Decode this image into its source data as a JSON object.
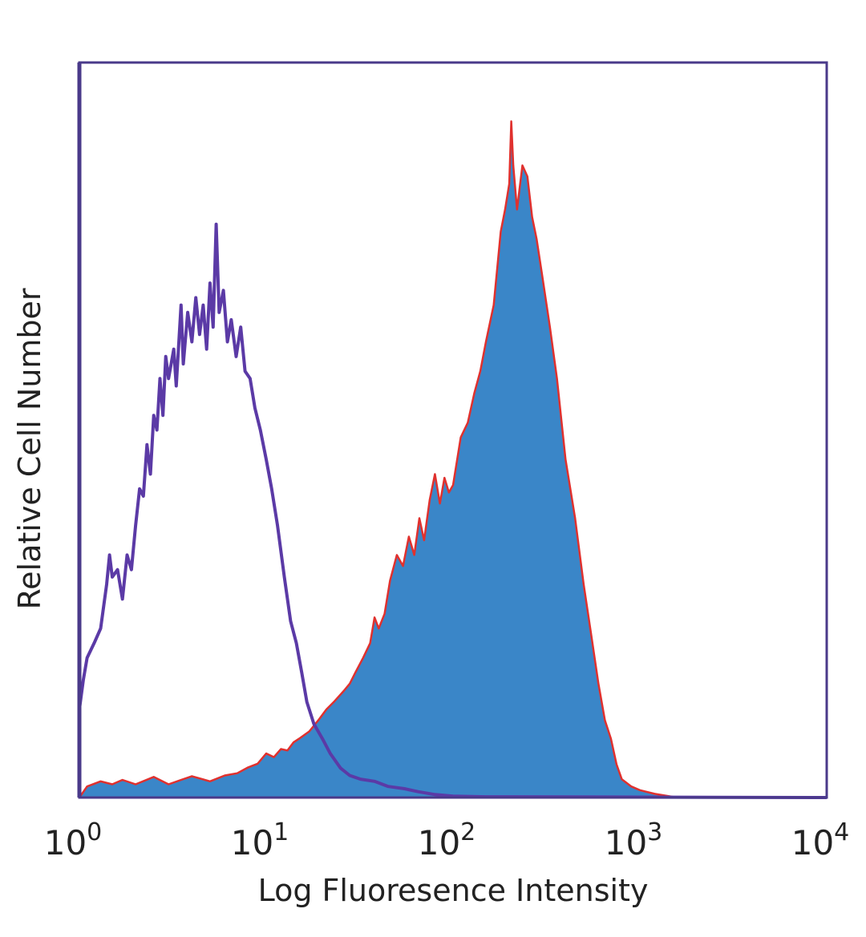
{
  "chart_data": {
    "type": "area",
    "title": "",
    "xlabel": "Log Fluoresence Intensity",
    "ylabel": "Relative Cell Number",
    "x_scale": "log",
    "xlim": [
      1,
      10000
    ],
    "ylim": [
      0,
      100
    ],
    "grid": false,
    "legend": "none",
    "x_ticks": [
      {
        "base": "10",
        "exp": "0"
      },
      {
        "base": "10",
        "exp": "1"
      },
      {
        "base": "10",
        "exp": "2"
      },
      {
        "base": "10",
        "exp": "3"
      },
      {
        "base": "10",
        "exp": "4"
      }
    ],
    "colors": {
      "control_line": "#5b3aa6",
      "stained_fill": "#3a86c8",
      "stained_edge": "#e0312e",
      "frame": "#4a3a8a"
    },
    "series": [
      {
        "style": "outline",
        "color": "#5b3aa6",
        "points": [
          [
            1.0,
            12
          ],
          [
            1.05,
            16
          ],
          [
            1.1,
            19
          ],
          [
            1.2,
            21
          ],
          [
            1.3,
            23
          ],
          [
            1.4,
            29
          ],
          [
            1.45,
            33
          ],
          [
            1.5,
            30
          ],
          [
            1.6,
            31
          ],
          [
            1.7,
            27
          ],
          [
            1.8,
            33
          ],
          [
            1.9,
            31
          ],
          [
            2.0,
            37
          ],
          [
            2.1,
            42
          ],
          [
            2.2,
            41
          ],
          [
            2.3,
            48
          ],
          [
            2.4,
            44
          ],
          [
            2.5,
            52
          ],
          [
            2.6,
            50
          ],
          [
            2.7,
            57
          ],
          [
            2.8,
            52
          ],
          [
            2.9,
            60
          ],
          [
            3.0,
            57
          ],
          [
            3.2,
            61
          ],
          [
            3.3,
            56
          ],
          [
            3.5,
            67
          ],
          [
            3.6,
            59
          ],
          [
            3.8,
            66
          ],
          [
            4.0,
            62
          ],
          [
            4.2,
            68
          ],
          [
            4.4,
            63
          ],
          [
            4.6,
            67
          ],
          [
            4.8,
            61
          ],
          [
            5.0,
            70
          ],
          [
            5.2,
            64
          ],
          [
            5.4,
            78
          ],
          [
            5.6,
            66
          ],
          [
            5.9,
            69
          ],
          [
            6.2,
            62
          ],
          [
            6.5,
            65
          ],
          [
            6.9,
            60
          ],
          [
            7.3,
            64
          ],
          [
            7.7,
            58
          ],
          [
            8.2,
            57
          ],
          [
            8.7,
            53
          ],
          [
            9.3,
            50
          ],
          [
            10.0,
            46
          ],
          [
            10.7,
            42
          ],
          [
            11.5,
            37
          ],
          [
            12.5,
            30
          ],
          [
            13.5,
            24
          ],
          [
            14.5,
            21
          ],
          [
            15.5,
            17
          ],
          [
            16.5,
            13
          ],
          [
            18.0,
            10
          ],
          [
            20.0,
            8
          ],
          [
            22.0,
            6
          ],
          [
            25.0,
            4
          ],
          [
            28.0,
            3
          ],
          [
            32.0,
            2.5
          ],
          [
            38.0,
            2.2
          ],
          [
            45.0,
            1.5
          ],
          [
            55.0,
            1.2
          ],
          [
            65.0,
            0.8
          ],
          [
            80.0,
            0.4
          ],
          [
            100.0,
            0.2
          ],
          [
            150.0,
            0.1
          ],
          [
            1000.0,
            0.05
          ],
          [
            10000.0,
            0
          ]
        ]
      },
      {
        "style": "filled",
        "color": "#3a86c8",
        "edge_color": "#e0312e",
        "points": [
          [
            1.0,
            0
          ],
          [
            1.1,
            1.5
          ],
          [
            1.3,
            2.2
          ],
          [
            1.5,
            1.8
          ],
          [
            1.7,
            2.4
          ],
          [
            2.0,
            1.8
          ],
          [
            2.5,
            2.8
          ],
          [
            3.0,
            1.8
          ],
          [
            3.5,
            2.4
          ],
          [
            4.0,
            2.9
          ],
          [
            5.0,
            2.2
          ],
          [
            6.0,
            3.0
          ],
          [
            7.0,
            3.3
          ],
          [
            8.0,
            4.1
          ],
          [
            9.0,
            4.6
          ],
          [
            10.0,
            6.0
          ],
          [
            11.0,
            5.5
          ],
          [
            12.0,
            6.6
          ],
          [
            13.0,
            6.4
          ],
          [
            14.0,
            7.5
          ],
          [
            15.0,
            8.0
          ],
          [
            17.0,
            9.0
          ],
          [
            19.0,
            10.5
          ],
          [
            21.0,
            12.0
          ],
          [
            23.0,
            13.0
          ],
          [
            26.0,
            14.5
          ],
          [
            28.0,
            15.5
          ],
          [
            30.0,
            17.0
          ],
          [
            33.0,
            19.0
          ],
          [
            36.0,
            21.0
          ],
          [
            38.0,
            24.5
          ],
          [
            40.0,
            23.0
          ],
          [
            43.0,
            25.0
          ],
          [
            46.0,
            29.5
          ],
          [
            50.0,
            33.0
          ],
          [
            54.0,
            31.5
          ],
          [
            58.0,
            35.5
          ],
          [
            62.0,
            33.0
          ],
          [
            66.0,
            38.0
          ],
          [
            70.0,
            35.0
          ],
          [
            75.0,
            40.5
          ],
          [
            80.0,
            44.0
          ],
          [
            85.0,
            40.0
          ],
          [
            90.0,
            43.5
          ],
          [
            95.0,
            41.5
          ],
          [
            100.0,
            42.5
          ],
          [
            110.0,
            49.0
          ],
          [
            120.0,
            51.0
          ],
          [
            130.0,
            55.0
          ],
          [
            140.0,
            58.0
          ],
          [
            150.0,
            62.0
          ],
          [
            165.0,
            67.0
          ],
          [
            180.0,
            77.0
          ],
          [
            190.0,
            80.0
          ],
          [
            200.0,
            83.5
          ],
          [
            205.0,
            92.0
          ],
          [
            210.0,
            86.0
          ],
          [
            220.0,
            80.0
          ],
          [
            235.0,
            86.0
          ],
          [
            250.0,
            84.5
          ],
          [
            265.0,
            79.0
          ],
          [
            280.0,
            76.0
          ],
          [
            300.0,
            71.0
          ],
          [
            330.0,
            64.0
          ],
          [
            360.0,
            57.0
          ],
          [
            400.0,
            46.0
          ],
          [
            450.0,
            38.0
          ],
          [
            500.0,
            29.0
          ],
          [
            550.0,
            22.0
          ],
          [
            600.0,
            15.5
          ],
          [
            650.0,
            10.5
          ],
          [
            700.0,
            8.0
          ],
          [
            750.0,
            4.5
          ],
          [
            800.0,
            2.5
          ],
          [
            900.0,
            1.5
          ],
          [
            1000.0,
            1.0
          ],
          [
            1200.0,
            0.5
          ],
          [
            1500.0,
            0.1
          ],
          [
            10000.0,
            0
          ]
        ]
      }
    ]
  }
}
